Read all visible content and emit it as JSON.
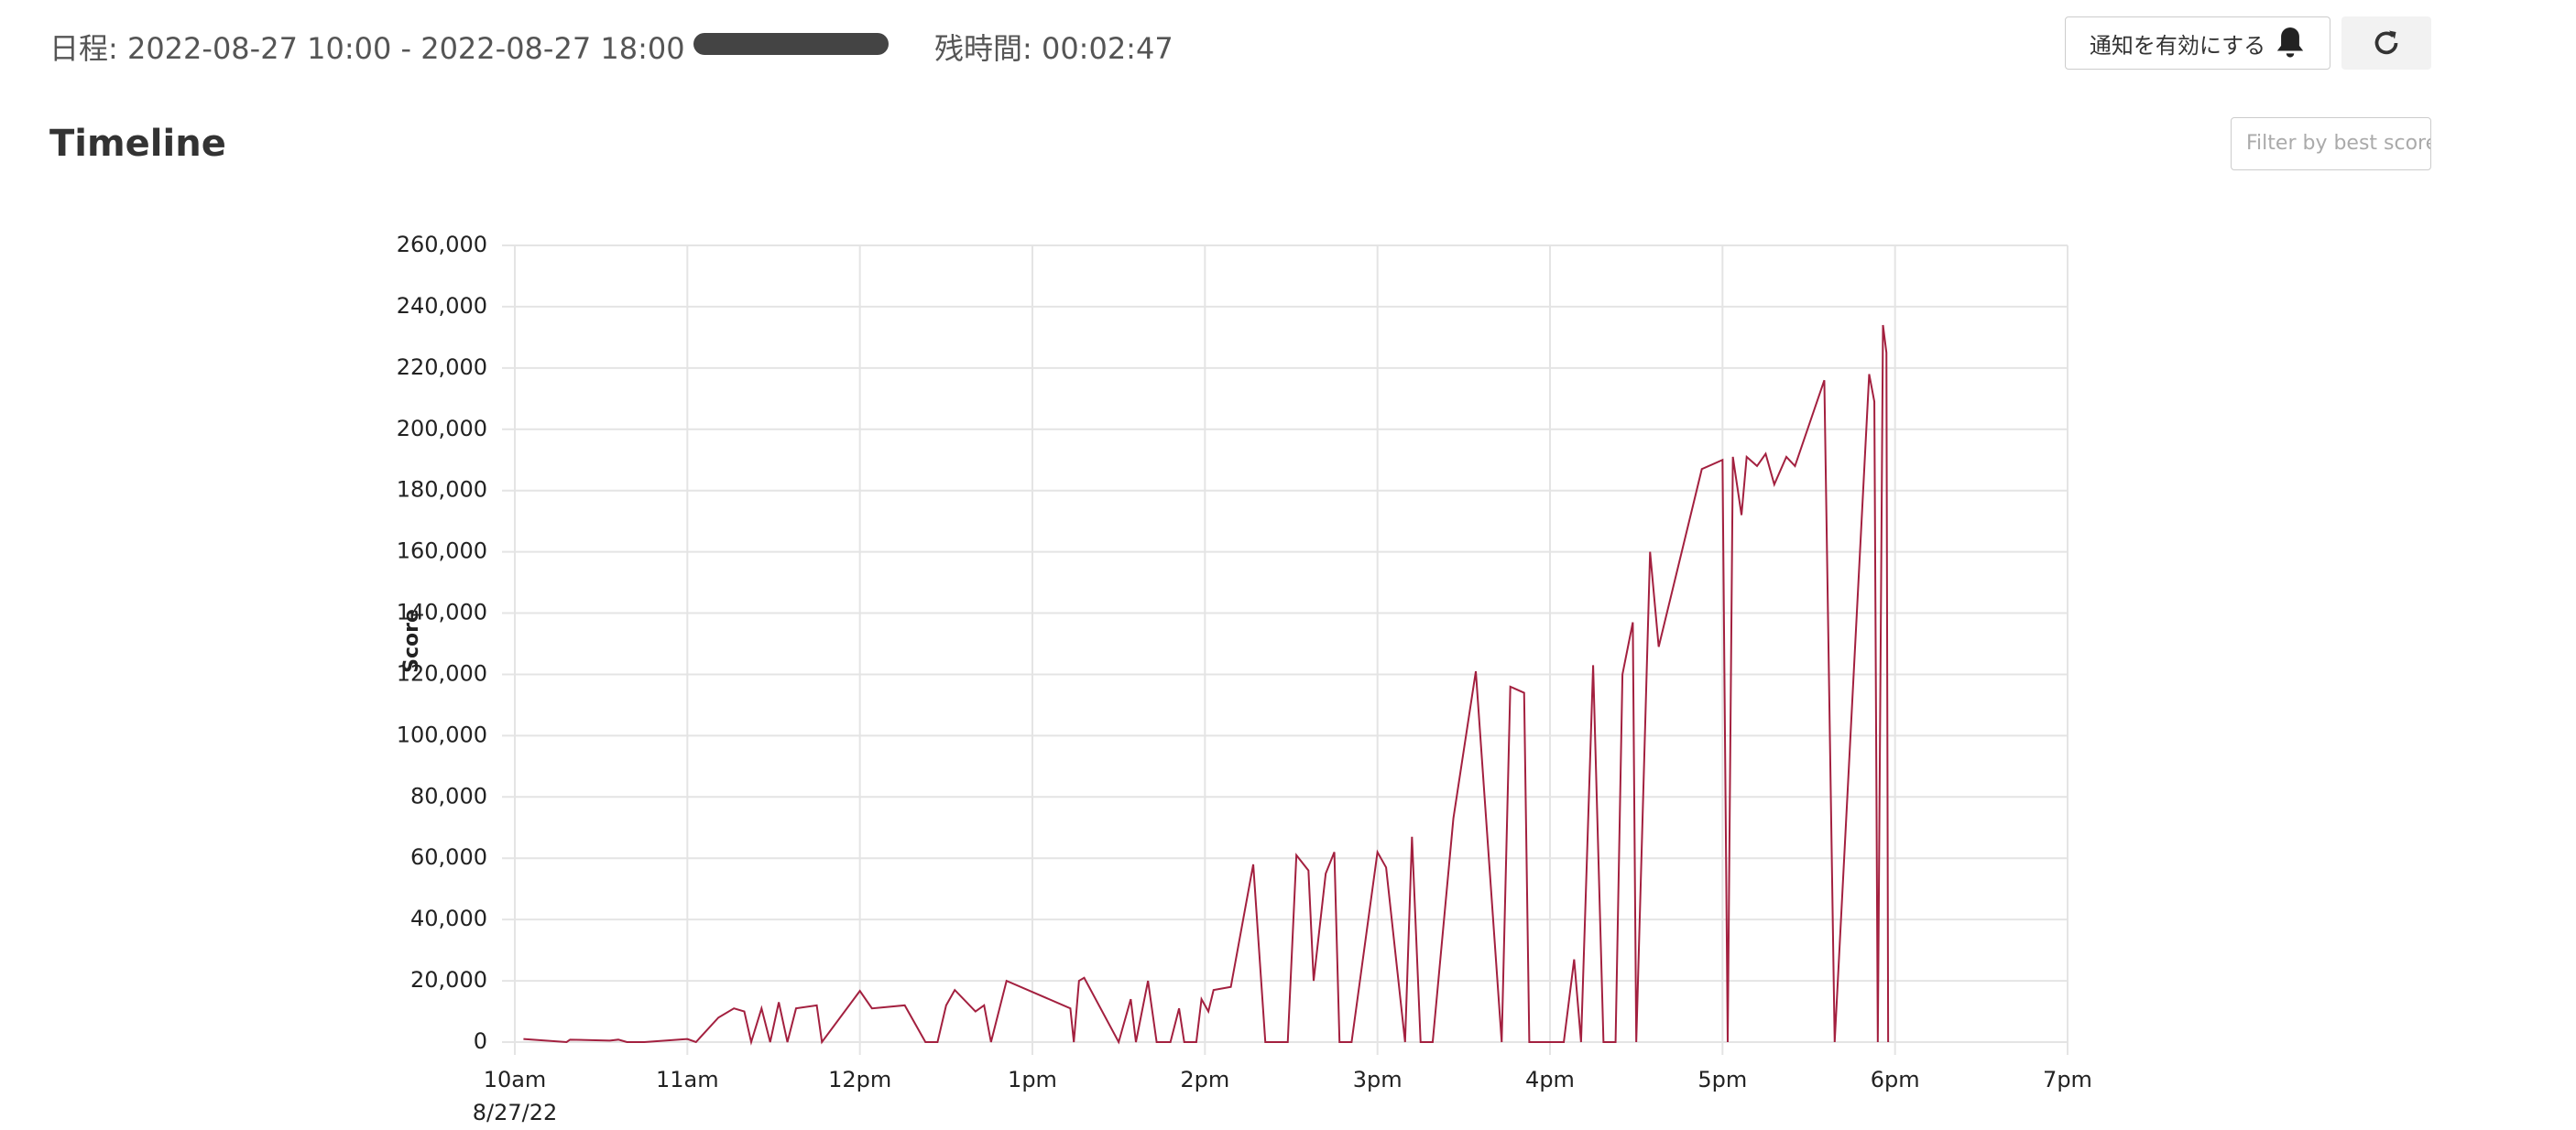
{
  "header": {
    "schedule": "日程: 2022-08-27 10:00 - 2022-08-27 18:00",
    "remaining": "残時間: 00:02:47",
    "notify_button": "通知を有効にする"
  },
  "section_title": "Timeline",
  "filter_placeholder": "Filter by best score",
  "chart_data": {
    "type": "line",
    "y_label": "Score",
    "x_date": "8/27/22",
    "xlim": [
      10,
      19
    ],
    "xticks": [
      {
        "value": 10,
        "label": "10am"
      },
      {
        "value": 11,
        "label": "11am"
      },
      {
        "value": 12,
        "label": "12pm"
      },
      {
        "value": 13,
        "label": "1pm"
      },
      {
        "value": 14,
        "label": "2pm"
      },
      {
        "value": 15,
        "label": "3pm"
      },
      {
        "value": 16,
        "label": "4pm"
      },
      {
        "value": 17,
        "label": "5pm"
      },
      {
        "value": 18,
        "label": "6pm"
      },
      {
        "value": 19,
        "label": "7pm"
      }
    ],
    "ylim": [
      0,
      260000
    ],
    "yticks": [
      0,
      {
        "value": 20000,
        "label": "20,000"
      },
      {
        "value": 40000,
        "label": "40,000"
      },
      {
        "value": 60000,
        "label": "60,000"
      },
      {
        "value": 80000,
        "label": "80,000"
      },
      {
        "value": 100000,
        "label": "100,000"
      },
      {
        "value": 120000,
        "label": "120,000"
      },
      {
        "value": 140000,
        "label": "140,000"
      },
      {
        "value": 160000,
        "label": "160,000"
      },
      {
        "value": 180000,
        "label": "180,000"
      },
      {
        "value": 200000,
        "label": "200,000"
      },
      {
        "value": 220000,
        "label": "220,000"
      },
      {
        "value": 240000,
        "label": "240,000"
      },
      {
        "value": 260000,
        "label": "260,000"
      }
    ],
    "grid": true,
    "series": [
      {
        "color": "#a3203f",
        "x": [
          10.05,
          10.3,
          10.32,
          10.55,
          10.6,
          10.65,
          10.75,
          11.0,
          11.05,
          11.18,
          11.27,
          11.33,
          11.37,
          11.43,
          11.48,
          11.53,
          11.58,
          11.63,
          11.75,
          11.78,
          12.0,
          12.07,
          12.26,
          12.38,
          12.45,
          12.5,
          12.55,
          12.67,
          12.72,
          12.76,
          12.85,
          13.22,
          13.24,
          13.27,
          13.3,
          13.5,
          13.57,
          13.6,
          13.67,
          13.72,
          13.8,
          13.85,
          13.88,
          13.95,
          13.98,
          14.02,
          14.05,
          14.15,
          14.28,
          14.35,
          14.48,
          14.53,
          14.6,
          14.63,
          14.7,
          14.75,
          14.78,
          14.85,
          15.0,
          15.05,
          15.16,
          15.2,
          15.25,
          15.32,
          15.44,
          15.57,
          15.72,
          15.77,
          15.85,
          15.88,
          16.08,
          16.14,
          16.18,
          16.25,
          16.31,
          16.38,
          16.42,
          16.48,
          16.5,
          16.58,
          16.63,
          16.88,
          17.0,
          17.03,
          17.06,
          17.11,
          17.14,
          17.2,
          17.25,
          17.3,
          17.37,
          17.42,
          17.59,
          17.65,
          17.85,
          17.88,
          17.9,
          17.93,
          17.95,
          17.96
        ],
        "values": [
          1000,
          0,
          800,
          500,
          800,
          0,
          0,
          1000,
          0,
          8000,
          11000,
          10000,
          0,
          11000,
          0,
          13000,
          0,
          11000,
          12000,
          0,
          16700,
          11000,
          12000,
          0,
          0,
          12000,
          17000,
          10000,
          12000,
          0,
          20000,
          11000,
          0,
          20000,
          21000,
          0,
          14000,
          0,
          20000,
          0,
          0,
          11000,
          0,
          0,
          14000,
          10000,
          17000,
          18000,
          58000,
          0,
          0,
          61000,
          56000,
          20000,
          55000,
          62000,
          0,
          0,
          62000,
          57000,
          0,
          67000,
          0,
          0,
          73000,
          121000,
          0,
          116000,
          114000,
          0,
          0,
          27000,
          0,
          123000,
          0,
          0,
          120000,
          137000,
          0,
          160000,
          129000,
          187000,
          190000,
          0,
          191000,
          172000,
          191000,
          188000,
          192000,
          182000,
          191000,
          188000,
          216000,
          0,
          218000,
          209000,
          0,
          234000,
          225000,
          0
        ]
      }
    ]
  }
}
